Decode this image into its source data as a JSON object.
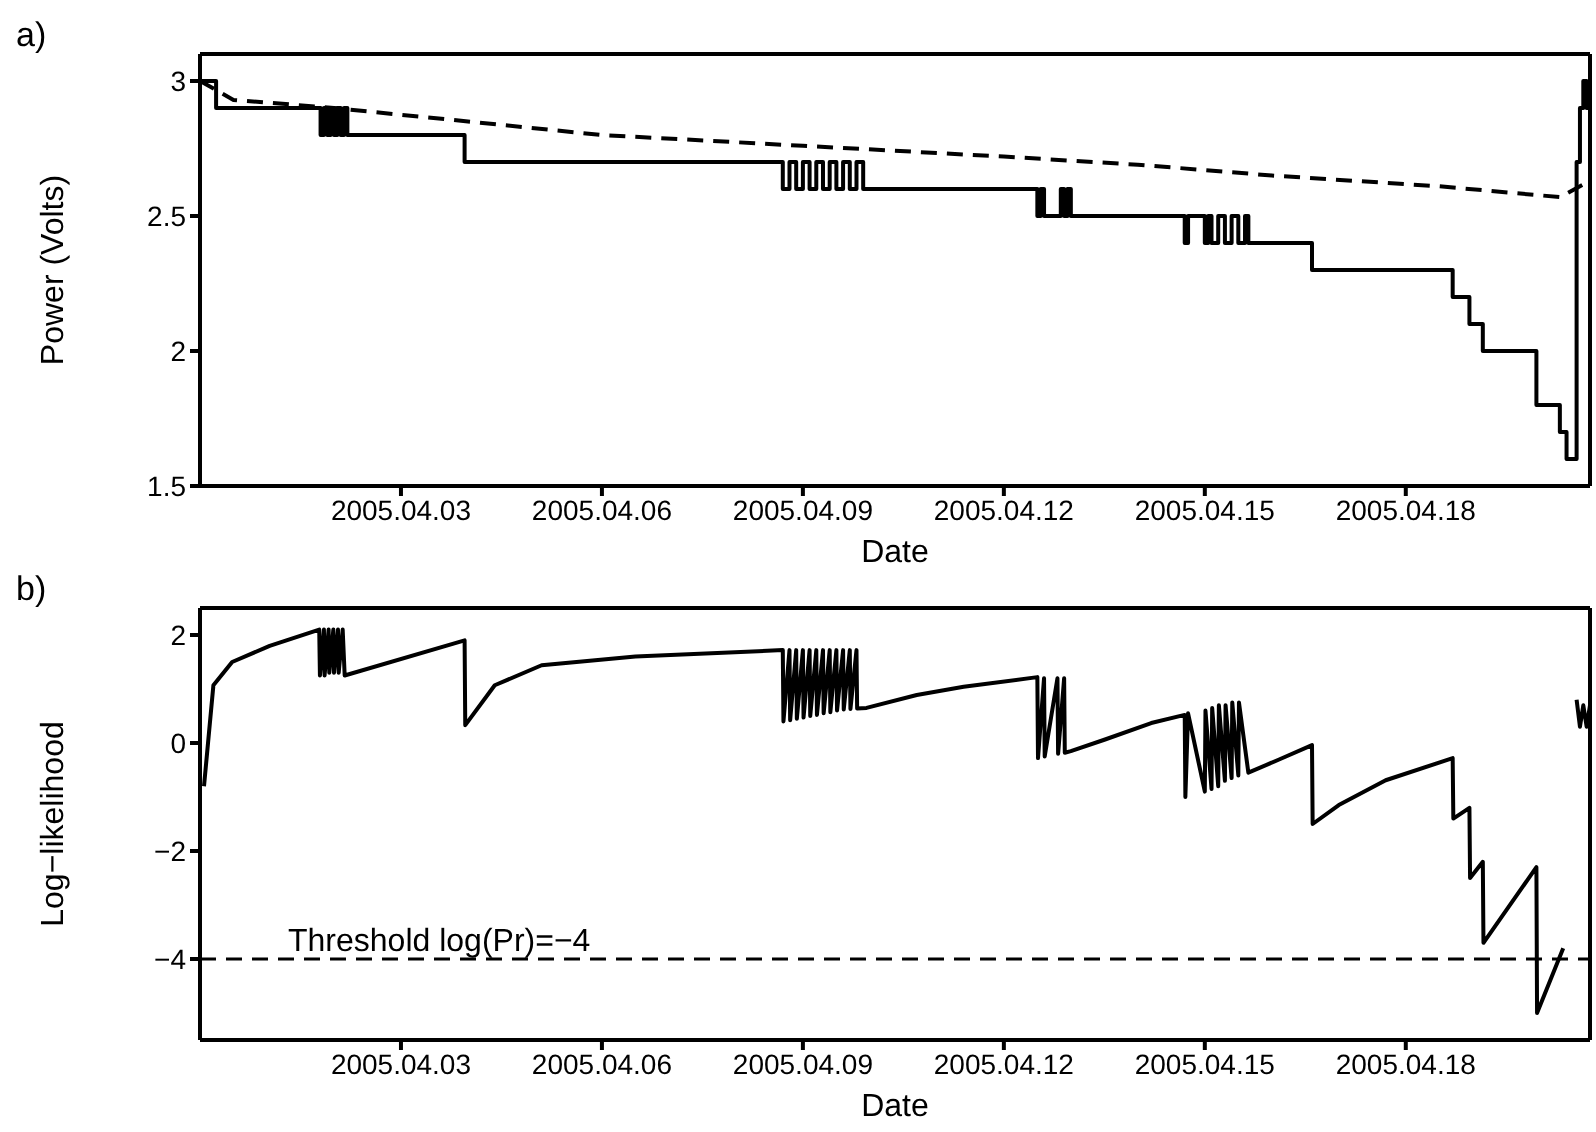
{
  "chart_data": [
    {
      "type": "step",
      "title": "a)",
      "xlabel": "Date",
      "ylabel": "Power (Volts)",
      "xlim": [
        "2005-03-31T00:00",
        "2005-04-20T18:00"
      ],
      "xticks": [
        {
          "value": "2005-04-03",
          "label": "2005.04.03"
        },
        {
          "value": "2005-04-06",
          "label": "2005.04.06"
        },
        {
          "value": "2005-04-09",
          "label": "2005.04.09"
        },
        {
          "value": "2005-04-12",
          "label": "2005.04.12"
        },
        {
          "value": "2005-04-15",
          "label": "2005.04.15"
        },
        {
          "value": "2005-04-18",
          "label": "2005.04.18"
        }
      ],
      "ylim": [
        1.5,
        3.1
      ],
      "yticks": [
        1.5,
        2,
        2.5,
        3
      ],
      "series": [
        {
          "color": "#000000",
          "line_style": "solid",
          "x": [
            "2005-03-31T00:00",
            "2005-03-31T05:46",
            "2005-04-01T19:12",
            "2005-04-01T20:24",
            "2005-04-01T21:36",
            "2005-04-01T22:48",
            "2005-04-02T00:00",
            "2005-04-02T01:12",
            "2005-04-02T02:24",
            "2005-04-02T03:36",
            "2005-04-02T04:48",
            "2005-04-03T22:48",
            "2005-04-08T16:48",
            "2005-04-08T19:12",
            "2005-04-08T21:36",
            "2005-04-09T00:00",
            "2005-04-09T02:24",
            "2005-04-09T04:48",
            "2005-04-09T07:12",
            "2005-04-09T09:36",
            "2005-04-09T12:00",
            "2005-04-09T14:24",
            "2005-04-09T16:48",
            "2005-04-09T19:12",
            "2005-04-09T21:36",
            "2005-04-09T22:48",
            "2005-04-12T12:00",
            "2005-04-12T13:12",
            "2005-04-12T14:24",
            "2005-04-12T19:12",
            "2005-04-12T20:24",
            "2005-04-12T21:36",
            "2005-04-12T22:48",
            "2005-04-13T00:00",
            "2005-04-14T16:48",
            "2005-04-14T18:00",
            "2005-04-15T00:00",
            "2005-04-15T01:12",
            "2005-04-15T02:24",
            "2005-04-15T04:48",
            "2005-04-15T07:12",
            "2005-04-15T09:36",
            "2005-04-15T12:00",
            "2005-04-15T14:24",
            "2005-04-15T15:36",
            "2005-04-16T14:24",
            "2005-04-18T16:48",
            "2005-04-18T22:48",
            "2005-04-19T03:36",
            "2005-04-19T22:48",
            "2005-04-20T07:12",
            "2005-04-20T09:36",
            "2005-04-20T10:48",
            "2005-04-20T13:12",
            "2005-04-20T14:24",
            "2005-04-20T15:36",
            "2005-04-20T16:48",
            "2005-04-20T18:00"
          ],
          "values": [
            3,
            2.9,
            2.8,
            2.9,
            2.8,
            2.9,
            2.8,
            2.9,
            2.8,
            2.9,
            2.8,
            2.7,
            2.6,
            2.7,
            2.6,
            2.7,
            2.6,
            2.7,
            2.6,
            2.7,
            2.6,
            2.7,
            2.6,
            2.7,
            2.6,
            2.6,
            2.5,
            2.6,
            2.5,
            2.5,
            2.6,
            2.5,
            2.6,
            2.5,
            2.4,
            2.5,
            2.4,
            2.5,
            2.4,
            2.5,
            2.4,
            2.5,
            2.4,
            2.5,
            2.4,
            2.3,
            2.2,
            2.1,
            2,
            1.8,
            1.7,
            1.6,
            1.6,
            2.7,
            2.9,
            3,
            2.9,
            3
          ]
        },
        {
          "type": "line",
          "color": "#000000",
          "line_style": "dashed",
          "x": [
            "2005-03-31T00:00",
            "2005-03-31T12:00",
            "2005-04-02T00:00",
            "2005-04-04T00:00",
            "2005-04-06T00:00",
            "2005-04-09T00:00",
            "2005-04-12T00:00",
            "2005-04-14T00:00",
            "2005-04-16T00:00",
            "2005-04-18T12:00",
            "2005-04-20T07:12",
            "2005-04-20T18:00"
          ],
          "values": [
            3,
            2.93,
            2.9,
            2.85,
            2.8,
            2.76,
            2.72,
            2.69,
            2.65,
            2.61,
            2.57,
            2.63
          ]
        }
      ]
    },
    {
      "type": "line",
      "title": "b)",
      "xlabel": "Date",
      "ylabel": "Log−likelihood",
      "xlim": [
        "2005-03-31T00:00",
        "2005-04-20T18:00"
      ],
      "xticks": [
        {
          "value": "2005-04-03",
          "label": "2005.04.03"
        },
        {
          "value": "2005-04-06",
          "label": "2005.04.06"
        },
        {
          "value": "2005-04-09",
          "label": "2005.04.09"
        },
        {
          "value": "2005-04-12",
          "label": "2005.04.12"
        },
        {
          "value": "2005-04-15",
          "label": "2005.04.15"
        },
        {
          "value": "2005-04-18",
          "label": "2005.04.18"
        }
      ],
      "ylim": [
        -5.5,
        2.5
      ],
      "yticks": [
        {
          "value": -4,
          "label": "−4"
        },
        {
          "value": -2,
          "label": "−2"
        },
        0,
        2
      ],
      "ref_lines": [
        {
          "axis": "y",
          "value": -4,
          "label": "Threshold log(Pr)=−4",
          "color": "#000000",
          "line_style": "dashed"
        }
      ],
      "series": [
        {
          "color": "#000000",
          "line_style": "solid",
          "x": [
            "2005-03-31T01:26",
            "2005-03-31T04:48",
            "2005-03-31T11:31",
            "2005-04-01T00:58",
            "2005-04-01T18:43",
            "2005-04-01T18:58",
            "2005-04-01T20:24",
            "2005-04-01T20:38",
            "2005-04-01T22:05",
            "2005-04-01T22:19",
            "2005-04-01T23:46",
            "2005-04-02T00:00",
            "2005-04-02T01:26",
            "2005-04-02T01:41",
            "2005-04-02T03:07",
            "2005-04-02T03:50",
            "2005-04-03T22:48",
            "2005-04-03T23:02",
            "2005-04-04T09:36",
            "2005-04-05T02:24",
            "2005-04-06T12:00",
            "2005-04-08T16:48",
            "2005-04-08T17:02",
            "2005-04-08T19:12",
            "2005-04-08T19:26",
            "2005-04-08T21:36",
            "2005-04-08T21:50",
            "2005-04-09T00:00",
            "2005-04-09T00:14",
            "2005-04-09T02:24",
            "2005-04-09T02:38",
            "2005-04-09T04:48",
            "2005-04-09T05:02",
            "2005-04-09T07:12",
            "2005-04-09T07:26",
            "2005-04-09T09:36",
            "2005-04-09T09:50",
            "2005-04-09T12:00",
            "2005-04-09T12:14",
            "2005-04-09T14:24",
            "2005-04-09T14:38",
            "2005-04-09T16:48",
            "2005-04-09T17:02",
            "2005-04-09T19:12",
            "2005-04-09T19:26",
            "2005-04-09T22:48",
            "2005-04-10T16:48",
            "2005-04-11T09:36",
            "2005-04-12T12:00",
            "2005-04-12T12:14",
            "2005-04-12T14:24",
            "2005-04-12T14:38",
            "2005-04-12T19:12",
            "2005-04-12T19:26",
            "2005-04-12T21:36",
            "2005-04-12T21:50",
            "2005-04-13T00:00",
            "2005-04-13T12:00",
            "2005-04-14T04:48",
            "2005-04-14T16:48",
            "2005-04-14T17:02",
            "2005-04-14T18:00",
            "2005-04-15T00:00",
            "2005-04-15T00:14",
            "2005-04-15T02:24",
            "2005-04-15T02:38",
            "2005-04-15T04:48",
            "2005-04-15T05:02",
            "2005-04-15T07:12",
            "2005-04-15T07:26",
            "2005-04-15T09:36",
            "2005-04-15T09:50",
            "2005-04-15T12:00",
            "2005-04-15T12:14",
            "2005-04-15T15:36",
            "2005-04-16T02:24",
            "2005-04-16T14:24",
            "2005-04-16T14:38",
            "2005-04-17T00:00",
            "2005-04-17T16:48",
            "2005-04-18T16:48",
            "2005-04-18T17:02",
            "2005-04-18T22:48",
            "2005-04-18T23:02",
            "2005-04-19T03:36",
            "2005-04-19T03:50",
            "2005-04-19T22:48",
            "2005-04-19T23:02",
            "2005-04-20T08:24",
            "2005-04-20T09:36",
            "2005-04-20T10:48",
            "2005-04-20T13:12",
            "2005-04-20T14:24",
            "2005-04-20T15:36",
            "2005-04-20T16:48",
            "2005-04-20T18:00"
          ],
          "values": [
            -0.8,
            1.07,
            1.5,
            1.8,
            2.1,
            1.25,
            2.1,
            1.25,
            2.1,
            1.3,
            2.1,
            1.3,
            2.1,
            1.3,
            2.1,
            1.25,
            1.9,
            0.33,
            1.07,
            1.44,
            1.6,
            1.72,
            0.4,
            1.72,
            0.42,
            1.72,
            0.45,
            1.72,
            0.47,
            1.72,
            0.5,
            1.72,
            0.52,
            1.72,
            0.55,
            1.72,
            0.57,
            1.72,
            0.6,
            1.72,
            0.62,
            1.72,
            0.63,
            1.72,
            0.64,
            0.65,
            0.89,
            1.04,
            1.22,
            -0.28,
            1.2,
            -0.25,
            1.2,
            -0.2,
            1.2,
            -0.18,
            -0.15,
            0.06,
            0.37,
            0.52,
            -1,
            0.55,
            -0.9,
            0.6,
            -0.85,
            0.65,
            -0.8,
            0.7,
            -0.7,
            0.7,
            -0.65,
            0.75,
            -0.6,
            0.75,
            -0.55,
            -0.31,
            -0.04,
            -1.5,
            -1.15,
            -0.69,
            -0.28,
            -1.4,
            -1.2,
            -2.5,
            -2.2,
            -3.7,
            -2.3,
            -5,
            -3.8,
            null,
            null,
            0.8,
            0.3,
            0.7,
            0.3,
            0.7
          ]
        }
      ]
    }
  ]
}
